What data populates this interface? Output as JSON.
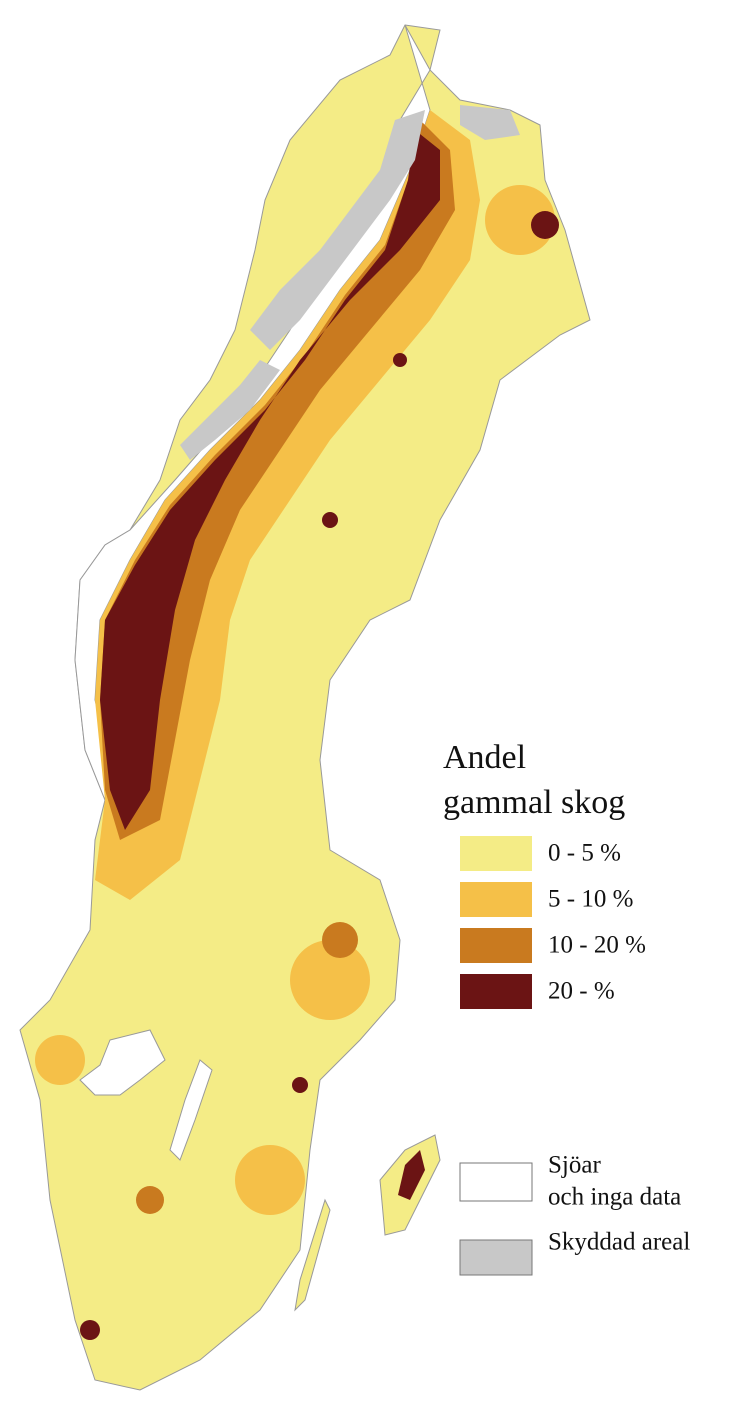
{
  "legend": {
    "title": [
      "Andel",
      "gammal skog"
    ],
    "classes": [
      {
        "label": "0 - 5 %",
        "color": "#f4ec86"
      },
      {
        "label": "5 - 10 %",
        "color": "#f5c048"
      },
      {
        "label": "10 - 20 %",
        "color": "#c97a1f"
      },
      {
        "label": "20 - %",
        "color": "#6b1414"
      }
    ],
    "other": [
      {
        "label": [
          "Sjöar",
          "och inga data"
        ],
        "color": "#ffffff"
      },
      {
        "label": [
          "Skyddad areal"
        ],
        "color": "#c8c8c8"
      }
    ]
  }
}
